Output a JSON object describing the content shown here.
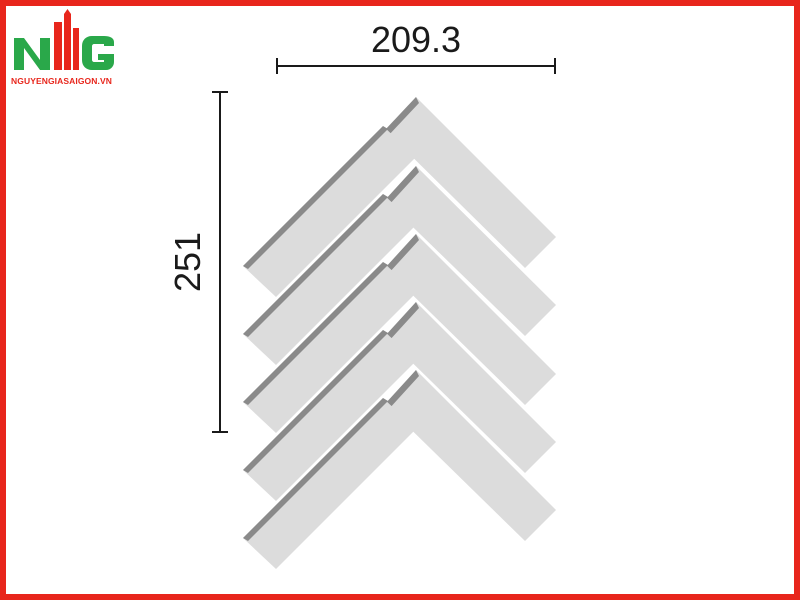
{
  "logo": {
    "letters": "NG",
    "caption": "NGUYENGIASAIGON.VN",
    "brand_green": "#2aa84a",
    "brand_red": "#e8261c"
  },
  "dimensions": {
    "width_label": "209.3",
    "height_label": "251"
  },
  "colors": {
    "frame": "#e8261c",
    "tile_face": "#dcdcdc",
    "tile_edge": "#8a8a8a",
    "dimension_line": "#1a1a1a"
  }
}
